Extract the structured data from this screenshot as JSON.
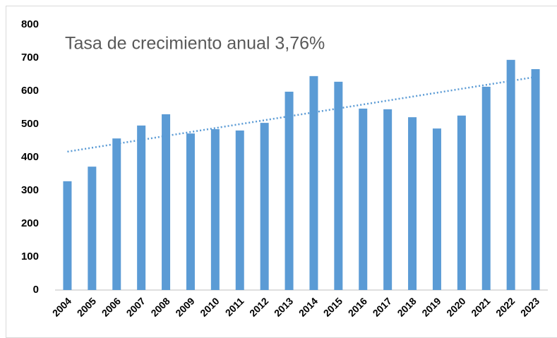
{
  "chart_data": {
    "type": "bar",
    "annotation": "Tasa de crecimiento anual 3,76%",
    "categories": [
      "2004",
      "2005",
      "2006",
      "2007",
      "2008",
      "2009",
      "2010",
      "2011",
      "2012",
      "2013",
      "2014",
      "2015",
      "2016",
      "2017",
      "2018",
      "2019",
      "2020",
      "2021",
      "2022",
      "2023"
    ],
    "values": [
      328,
      372,
      457,
      496,
      530,
      472,
      485,
      481,
      504,
      598,
      645,
      628,
      547,
      545,
      521,
      487,
      526,
      613,
      694,
      666
    ],
    "color": "#5b9bd5",
    "trendline": {
      "type": "linear",
      "color": "#5b9bd5"
    },
    "ylim": [
      0,
      800
    ],
    "yticks": [
      0,
      100,
      200,
      300,
      400,
      500,
      600,
      700,
      800
    ],
    "grid": false
  }
}
